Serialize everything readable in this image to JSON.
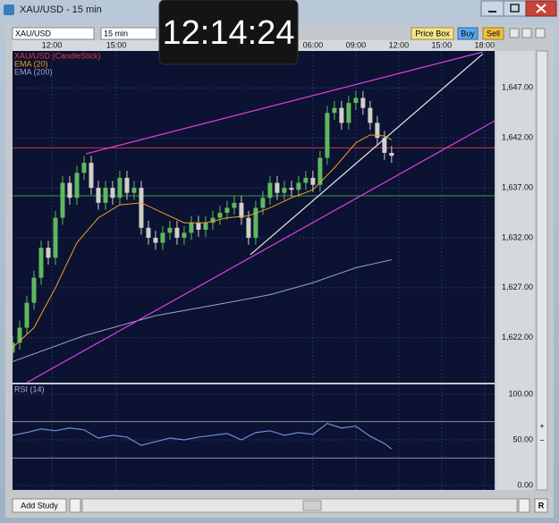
{
  "window": {
    "title": "XAU/USD - 15 min"
  },
  "toolbar": {
    "symbol": "XAU/USD",
    "timeframe": "15 min",
    "buttons": [
      "Price Box",
      "Buy",
      "Sell"
    ]
  },
  "clock": "12:14:24",
  "footer": {
    "button": "Add Study"
  },
  "chart_data": {
    "type": "candlestick",
    "name": "XAU/USD (CandleStick)",
    "name_color": "#e83a3a",
    "up_color": "#5fb85f",
    "down_color": "#d0d0c8",
    "x": [
      0,
      1,
      2,
      3,
      4,
      5,
      6,
      7,
      8,
      9,
      10,
      11,
      12,
      13,
      14,
      15,
      16,
      17,
      18,
      19,
      20,
      21,
      22,
      23,
      24,
      25,
      26,
      27,
      28,
      29,
      30,
      31,
      32,
      33,
      34,
      35,
      36,
      37,
      38,
      39,
      40,
      41,
      42,
      43,
      44,
      45,
      46,
      47,
      48,
      49,
      50,
      51,
      52,
      53
    ],
    "open": [
      1620.5,
      1621.5,
      1623,
      1625.5,
      1628,
      1631,
      1630,
      1634,
      1637.5,
      1636,
      1638.5,
      1639.5,
      1637,
      1635.5,
      1637,
      1636,
      1638,
      1636.5,
      1637,
      1633,
      1632,
      1631.5,
      1632.5,
      1633,
      1632,
      1632.5,
      1633.5,
      1632.8,
      1633.5,
      1634,
      1634.5,
      1635,
      1635.5,
      1634,
      1632,
      1635,
      1636,
      1637.5,
      1636.5,
      1637,
      1636.8,
      1637.5,
      1638,
      1637.3,
      1640,
      1644.5,
      1645,
      1643.5,
      1645.5,
      1646,
      1645,
      1643.5,
      1642,
      1640.5
    ],
    "high": [
      1622.2,
      1623.7,
      1626.2,
      1628.7,
      1631.7,
      1631.7,
      1634.7,
      1638.2,
      1638.2,
      1639.2,
      1640.2,
      1640.2,
      1637.7,
      1637.7,
      1637.7,
      1638.7,
      1638.7,
      1637.7,
      1637.7,
      1633.7,
      1632.7,
      1633.2,
      1633.7,
      1633.7,
      1633.2,
      1634.2,
      1634.2,
      1634.2,
      1634.7,
      1635.2,
      1635.7,
      1636.2,
      1636.2,
      1634.7,
      1635.7,
      1636.7,
      1638.2,
      1638.2,
      1637.7,
      1637.7,
      1638.2,
      1638.7,
      1638.7,
      1640.7,
      1645.2,
      1645.7,
      1645.7,
      1646.2,
      1646.7,
      1646.7,
      1645.7,
      1644.2,
      1642.7,
      1641.2
    ],
    "low": [
      1619.8,
      1620.8,
      1622.3,
      1624.8,
      1627.3,
      1629.3,
      1629.3,
      1633.3,
      1635.3,
      1635.3,
      1637.8,
      1636.3,
      1634.8,
      1634.8,
      1635.3,
      1635.3,
      1635.8,
      1635.8,
      1632.3,
      1631.3,
      1630.8,
      1630.8,
      1631.8,
      1631.3,
      1631.3,
      1631.8,
      1632.1,
      1632.1,
      1632.8,
      1633.3,
      1633.8,
      1634.3,
      1633.3,
      1631.3,
      1631.3,
      1634.3,
      1635.3,
      1635.8,
      1635.8,
      1636.1,
      1636.1,
      1636.8,
      1636.6,
      1636.6,
      1639.3,
      1643.8,
      1642.8,
      1642.8,
      1644.8,
      1644.3,
      1642.8,
      1641.3,
      1639.8,
      1639.5
    ],
    "close": [
      1621.5,
      1623,
      1625.5,
      1628,
      1631,
      1630,
      1634,
      1637.5,
      1636,
      1638.5,
      1639.5,
      1637,
      1635.5,
      1637,
      1636,
      1638,
      1636.5,
      1637,
      1633,
      1632,
      1631.5,
      1632.5,
      1633,
      1632,
      1632.5,
      1633.5,
      1632.8,
      1633.5,
      1634,
      1634.5,
      1635,
      1635.5,
      1634,
      1632,
      1635,
      1636,
      1637.5,
      1636.5,
      1637,
      1636.8,
      1637.5,
      1638,
      1637.3,
      1640,
      1644.5,
      1645,
      1643.5,
      1645.5,
      1646,
      1645,
      1643.5,
      1642,
      1640.5,
      1640.2
    ],
    "series": [
      {
        "name": "EMA (20)",
        "color": "#f0a020",
        "x": [
          0,
          3,
          6,
          9,
          12,
          15,
          18,
          21,
          24,
          27,
          30,
          33,
          36,
          39,
          42,
          45,
          48,
          50,
          52,
          53
        ],
        "values": [
          1621,
          1623,
          1627,
          1631.5,
          1634,
          1635.3,
          1635.5,
          1634.5,
          1633.5,
          1633.5,
          1634,
          1634.2,
          1635,
          1636,
          1636.8,
          1639,
          1641.5,
          1642.3,
          1642.2,
          1641.8
        ]
      },
      {
        "name": "EMA (200)",
        "color": "#9aa4d8",
        "x": [
          0,
          10,
          20,
          30,
          36,
          42,
          48,
          53
        ],
        "values": [
          1619.6,
          1622.2,
          1624.2,
          1625.5,
          1626.3,
          1627.5,
          1629,
          1629.8
        ]
      }
    ],
    "hlines": [
      {
        "value": 1641,
        "color": "#d03040"
      },
      {
        "value": 1636.2,
        "color": "#3c9a3c"
      }
    ],
    "trendlines": [
      {
        "color": "#e040e0",
        "x": [
          10.25,
          65.75
        ],
        "values": [
          1640.4,
          1650.6
        ]
      },
      {
        "color": "#e040e0",
        "x": [
          2,
          67.4
        ],
        "values": [
          1617.5,
          1643.7
        ]
      },
      {
        "color": "#e8e8e8",
        "x": [
          33.25,
          65.75
        ],
        "values": [
          1630.3,
          1650.4
        ]
      }
    ],
    "xlim": [
      0,
      67.4
    ],
    "xticks": [
      {
        "value": 5.5,
        "label": "12:00"
      },
      {
        "value": 14.5,
        "label": "15:00"
      },
      {
        "value": 42,
        "label": "06:00"
      },
      {
        "value": 48,
        "label": "09:00"
      },
      {
        "value": 54,
        "label": "12:00"
      },
      {
        "value": 60,
        "label": "15:00"
      },
      {
        "value": 66,
        "label": "18:00"
      }
    ],
    "ylim": [
      1617.5,
      1650.7
    ],
    "yticks": [
      {
        "value": 1622,
        "label": "1,622.00"
      },
      {
        "value": 1627,
        "label": "1,627.00"
      },
      {
        "value": 1632,
        "label": "1,632.00"
      },
      {
        "value": 1637,
        "label": "1,637.00"
      },
      {
        "value": 1642,
        "label": "1,642.00"
      },
      {
        "value": 1647,
        "label": "1,647.00"
      }
    ],
    "grid": true,
    "indicator": {
      "name": "RSI (14)",
      "color": "#6f8fd8",
      "x": [
        0,
        2,
        4,
        6,
        8,
        10,
        12,
        14,
        16,
        18,
        20,
        22,
        24,
        26,
        28,
        30,
        32,
        34,
        36,
        38,
        40,
        42,
        44,
        46,
        48,
        50,
        52,
        53
      ],
      "values": [
        55,
        58,
        62,
        60,
        63,
        61,
        52,
        55,
        53,
        44,
        48,
        52,
        50,
        53,
        55,
        57,
        50,
        58,
        60,
        55,
        58,
        56,
        68,
        63,
        65,
        54,
        46,
        40
      ],
      "ylim": [
        -4.9,
        110.8
      ],
      "yticks": [
        {
          "value": 0,
          "label": "0.00"
        },
        {
          "value": 50,
          "label": "50.00"
        },
        {
          "value": 100,
          "label": "100.00"
        }
      ],
      "levels": [
        30,
        70
      ]
    }
  }
}
